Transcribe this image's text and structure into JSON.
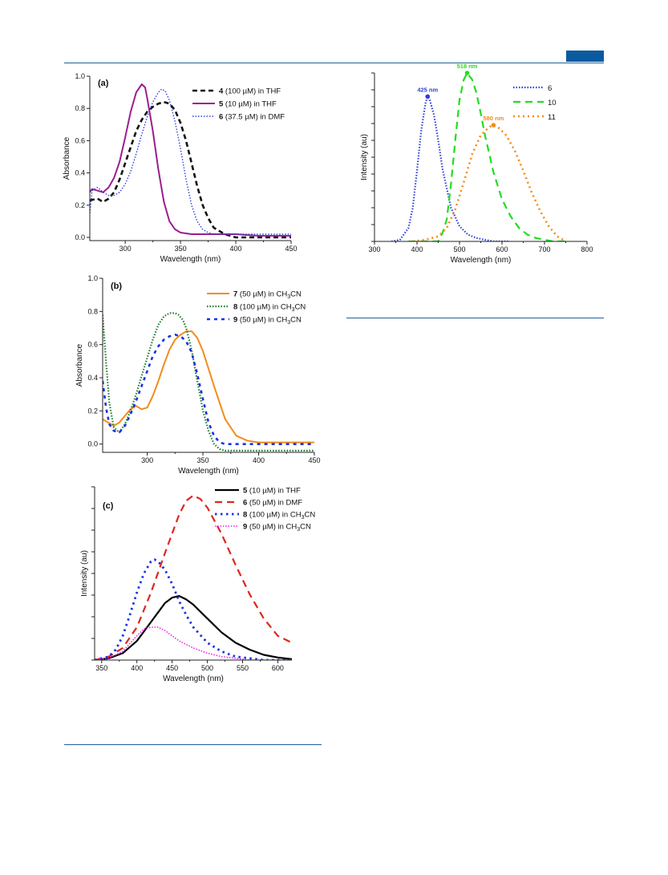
{
  "page": {
    "header_rule_color": "#1f5f96",
    "badge_color": "#0b5aa0"
  },
  "chart_data": [
    {
      "id": "a",
      "type": "line",
      "panel_label": "(a)",
      "xlabel": "Wavelength (nm)",
      "ylabel": "Absorbance",
      "xlim": [
        268,
        450
      ],
      "ylim": [
        -0.02,
        1.0
      ],
      "xticks": [
        300,
        350,
        400,
        450
      ],
      "yticks": [
        0.0,
        0.2,
        0.4,
        0.6,
        0.8,
        1.0
      ],
      "ytick_labels": [
        "0.0",
        "0.2",
        "0.4",
        "0.6",
        "0.8",
        "1.0"
      ],
      "legend_position": "top-right",
      "series": [
        {
          "name": "4",
          "legend_suffix": " (100 µM) in THF",
          "color": "#111111",
          "dash": "6,4",
          "width": 2.6,
          "x": [
            268,
            275,
            280,
            285,
            290,
            295,
            300,
            305,
            310,
            315,
            320,
            325,
            330,
            335,
            340,
            345,
            350,
            355,
            360,
            365,
            370,
            375,
            380,
            390,
            400,
            420,
            450
          ],
          "y": [
            0.23,
            0.24,
            0.22,
            0.24,
            0.28,
            0.36,
            0.46,
            0.56,
            0.66,
            0.73,
            0.78,
            0.81,
            0.83,
            0.84,
            0.83,
            0.79,
            0.71,
            0.6,
            0.46,
            0.32,
            0.2,
            0.12,
            0.06,
            0.02,
            0.0,
            0.0,
            0.0
          ]
        },
        {
          "name": "5",
          "legend_suffix": " (10 µM) in THF",
          "color": "#9b1e8e",
          "dash": "",
          "width": 2.0,
          "x": [
            268,
            270,
            275,
            280,
            285,
            290,
            295,
            300,
            305,
            310,
            315,
            318,
            320,
            325,
            330,
            335,
            340,
            345,
            350,
            360,
            370,
            380,
            400,
            420,
            450
          ],
          "y": [
            0.28,
            0.3,
            0.29,
            0.28,
            0.31,
            0.37,
            0.47,
            0.62,
            0.78,
            0.9,
            0.95,
            0.93,
            0.86,
            0.66,
            0.42,
            0.22,
            0.1,
            0.05,
            0.03,
            0.02,
            0.02,
            0.02,
            0.02,
            0.01,
            0.01
          ]
        },
        {
          "name": "6",
          "legend_suffix": " (37.5 µM) in DMF",
          "color": "#2a3fd9",
          "dash": "1.5,2",
          "width": 1.4,
          "x": [
            268,
            270,
            275,
            280,
            285,
            290,
            295,
            300,
            305,
            310,
            315,
            320,
            325,
            330,
            333,
            336,
            340,
            345,
            350,
            355,
            360,
            365,
            370,
            375,
            380,
            400,
            450
          ],
          "y": [
            0.15,
            0.29,
            0.31,
            0.28,
            0.26,
            0.26,
            0.28,
            0.33,
            0.41,
            0.52,
            0.64,
            0.75,
            0.84,
            0.9,
            0.92,
            0.91,
            0.85,
            0.72,
            0.55,
            0.36,
            0.2,
            0.1,
            0.05,
            0.03,
            0.02,
            0.02,
            0.02
          ]
        }
      ]
    },
    {
      "id": "b",
      "type": "line",
      "panel_label": "(b)",
      "xlabel": "Wavelength (nm)",
      "ylabel": "Absorbance",
      "xlim": [
        260,
        450
      ],
      "ylim": [
        -0.05,
        1.0
      ],
      "xticks": [
        300,
        350,
        400,
        450
      ],
      "yticks": [
        0.0,
        0.2,
        0.4,
        0.6,
        0.8,
        1.0
      ],
      "ytick_labels": [
        "0.0",
        "0.2",
        "0.4",
        "0.6",
        "0.8",
        "1.0"
      ],
      "legend_position": "top-right",
      "series": [
        {
          "name": "7",
          "legend_suffix": " (50 µM) in CH3CN",
          "color": "#f28c1b",
          "dash": "",
          "width": 2.0,
          "x": [
            260,
            265,
            270,
            275,
            280,
            285,
            290,
            295,
            300,
            305,
            310,
            315,
            320,
            325,
            330,
            335,
            340,
            345,
            350,
            360,
            370,
            380,
            390,
            400,
            420,
            450
          ],
          "y": [
            0.15,
            0.13,
            0.11,
            0.13,
            0.17,
            0.21,
            0.23,
            0.21,
            0.22,
            0.29,
            0.38,
            0.48,
            0.57,
            0.63,
            0.66,
            0.68,
            0.68,
            0.64,
            0.56,
            0.35,
            0.15,
            0.05,
            0.02,
            0.01,
            0.01,
            0.01
          ]
        },
        {
          "name": "8",
          "legend_suffix": " (100 µM) in CH3CN",
          "color": "#1e7a2a",
          "dash": "1.5,2",
          "width": 2.2,
          "x": [
            260,
            263,
            266,
            270,
            275,
            280,
            285,
            290,
            295,
            300,
            305,
            310,
            315,
            320,
            325,
            328,
            332,
            335,
            340,
            345,
            350,
            355,
            360,
            365,
            370,
            380,
            400,
            450
          ],
          "y": [
            0.78,
            0.5,
            0.25,
            0.1,
            0.07,
            0.12,
            0.2,
            0.3,
            0.41,
            0.52,
            0.63,
            0.72,
            0.77,
            0.79,
            0.79,
            0.78,
            0.75,
            0.7,
            0.56,
            0.38,
            0.2,
            0.08,
            0.0,
            -0.03,
            -0.04,
            -0.04,
            -0.04,
            -0.04
          ]
        },
        {
          "name": "9",
          "legend_suffix": " (50 µM) in CH3CN",
          "color": "#1a33e0",
          "dash": "4,5",
          "width": 2.6,
          "x": [
            260,
            263,
            266,
            270,
            275,
            280,
            285,
            290,
            295,
            300,
            305,
            310,
            315,
            320,
            325,
            330,
            335,
            340,
            345,
            350,
            355,
            360,
            365,
            370,
            380,
            400,
            450
          ],
          "y": [
            0.38,
            0.22,
            0.12,
            0.08,
            0.07,
            0.11,
            0.18,
            0.26,
            0.35,
            0.44,
            0.53,
            0.59,
            0.63,
            0.65,
            0.66,
            0.65,
            0.62,
            0.55,
            0.42,
            0.27,
            0.13,
            0.05,
            0.01,
            0.0,
            0.0,
            0.0,
            0.0
          ]
        }
      ]
    },
    {
      "id": "c",
      "type": "line",
      "panel_label": "(c)",
      "xlabel": "Wavelength (nm)",
      "ylabel": "Intensity (au)",
      "xlim": [
        340,
        620
      ],
      "ylim": [
        0,
        1.0
      ],
      "xticks": [
        350,
        400,
        450,
        500,
        550,
        600
      ],
      "yticks": [
        0.0,
        0.125,
        0.25,
        0.375,
        0.5,
        0.625,
        0.75,
        0.875,
        1.0
      ],
      "ytick_labels": [],
      "legend_position": "top-right",
      "series": [
        {
          "name": "5",
          "legend_suffix": " (10 µM) in THF",
          "color": "#000000",
          "dash": "",
          "width": 2.2,
          "x": [
            340,
            360,
            380,
            400,
            420,
            440,
            450,
            460,
            470,
            480,
            500,
            520,
            540,
            560,
            580,
            600,
            620
          ],
          "y": [
            0.0,
            0.01,
            0.04,
            0.11,
            0.22,
            0.33,
            0.36,
            0.37,
            0.35,
            0.32,
            0.24,
            0.16,
            0.1,
            0.06,
            0.03,
            0.015,
            0.005
          ]
        },
        {
          "name": "6",
          "legend_suffix": " (50 µM) in DMF",
          "color": "#e0261c",
          "dash": "9,6",
          "width": 2.2,
          "x": [
            340,
            360,
            380,
            400,
            420,
            440,
            460,
            470,
            480,
            490,
            500,
            520,
            540,
            560,
            580,
            600,
            620
          ],
          "y": [
            0.0,
            0.02,
            0.07,
            0.19,
            0.39,
            0.62,
            0.84,
            0.92,
            0.95,
            0.93,
            0.88,
            0.73,
            0.55,
            0.38,
            0.24,
            0.14,
            0.1
          ]
        },
        {
          "name": "8",
          "legend_suffix": " (100 µM) in CH3CN",
          "color": "#1a33e0",
          "dash": "2.5,4.5",
          "width": 2.8,
          "x": [
            340,
            360,
            370,
            380,
            390,
            400,
            410,
            420,
            425,
            430,
            440,
            450,
            460,
            470,
            480,
            500,
            520,
            540,
            560,
            580,
            620
          ],
          "y": [
            0.0,
            0.02,
            0.06,
            0.14,
            0.26,
            0.39,
            0.5,
            0.57,
            0.58,
            0.57,
            0.52,
            0.44,
            0.34,
            0.26,
            0.19,
            0.1,
            0.05,
            0.02,
            0.01,
            0.0,
            0.0
          ]
        },
        {
          "name": "9",
          "legend_suffix": " (50 µM) in CH3CN",
          "color": "#ee22ee",
          "dash": "1.5,1.8",
          "width": 1.6,
          "x": [
            340,
            360,
            380,
            400,
            410,
            420,
            425,
            430,
            440,
            450,
            460,
            480,
            500,
            520,
            540,
            560,
            580,
            620
          ],
          "y": [
            0.0,
            0.01,
            0.05,
            0.14,
            0.18,
            0.19,
            0.19,
            0.19,
            0.17,
            0.14,
            0.11,
            0.07,
            0.04,
            0.02,
            0.01,
            0.0,
            0.0,
            0.0
          ]
        }
      ]
    },
    {
      "id": "d",
      "type": "line",
      "panel_label": "",
      "xlabel": "Wavelength (nm)",
      "ylabel": "Intensity (au)",
      "xlim": [
        300,
        800
      ],
      "ylim": [
        0,
        1.0
      ],
      "xticks": [
        300,
        400,
        500,
        600,
        700,
        800
      ],
      "yticks": [
        0.0,
        0.1,
        0.2,
        0.3,
        0.4,
        0.5,
        0.6,
        0.7,
        0.8,
        0.9,
        1.0
      ],
      "ytick_labels": [],
      "legend_position": "top-right",
      "series": [
        {
          "name": "6",
          "legend_suffix": "",
          "color": "#2a3fd9",
          "dash": "1.5,2",
          "width": 2.2,
          "peak_label": "425 nm",
          "peak": [
            425,
            0.86
          ],
          "x": [
            340,
            360,
            380,
            390,
            400,
            410,
            420,
            425,
            430,
            440,
            450,
            460,
            480,
            500,
            520,
            540,
            560,
            580,
            600,
            615
          ],
          "y": [
            0.0,
            0.01,
            0.08,
            0.2,
            0.42,
            0.66,
            0.82,
            0.86,
            0.84,
            0.75,
            0.6,
            0.43,
            0.2,
            0.09,
            0.04,
            0.02,
            0.01,
            0.0,
            0.0,
            0.0
          ]
        },
        {
          "name": "10",
          "legend_suffix": "",
          "color": "#22dd22",
          "dash": "9,6",
          "width": 2.2,
          "peak_label": "518 nm",
          "peak": [
            518,
            1.0
          ],
          "x": [
            380,
            420,
            450,
            460,
            470,
            480,
            490,
            500,
            510,
            518,
            530,
            540,
            550,
            560,
            580,
            600,
            620,
            640,
            660,
            680,
            700,
            720,
            750
          ],
          "y": [
            0.0,
            0.0,
            0.0,
            0.05,
            0.13,
            0.34,
            0.6,
            0.84,
            0.96,
            1.0,
            0.96,
            0.88,
            0.76,
            0.63,
            0.41,
            0.25,
            0.15,
            0.08,
            0.04,
            0.02,
            0.01,
            0.0,
            0.0
          ]
        },
        {
          "name": "11",
          "legend_suffix": "",
          "color": "#f28c1b",
          "dash": "2,4",
          "width": 2.6,
          "peak_label": "580 nm",
          "peak": [
            580,
            0.69
          ],
          "x": [
            390,
            420,
            450,
            470,
            490,
            510,
            530,
            550,
            570,
            580,
            590,
            610,
            630,
            650,
            670,
            690,
            710,
            730,
            750
          ],
          "y": [
            0.0,
            0.01,
            0.03,
            0.08,
            0.19,
            0.35,
            0.52,
            0.63,
            0.68,
            0.69,
            0.68,
            0.63,
            0.54,
            0.42,
            0.29,
            0.18,
            0.09,
            0.03,
            0.0
          ]
        }
      ]
    }
  ]
}
